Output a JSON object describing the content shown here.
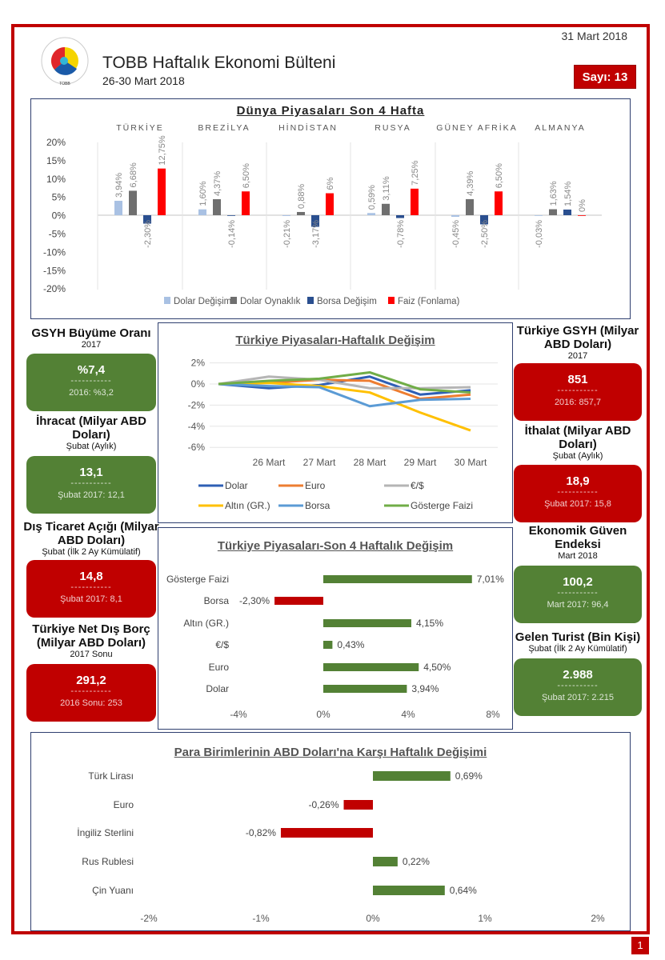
{
  "header": {
    "date": "31 Mart 2018",
    "title": "TOBB Haftalık Ekonomi Bülteni",
    "subtitle": "26-30 Mart 2018",
    "issue": "Sayı: 13",
    "logo_text": "TÜRKİYE ODALAR VE BORSALAR BİRLİĞİ TOBB"
  },
  "page_number": "1",
  "kpis_left": [
    {
      "title": "GSYH Büyüme Oranı",
      "period": "2017",
      "value": "%7,4",
      "divider": "-----------",
      "previous": "2016: %3,2",
      "color": "green"
    },
    {
      "title": "İhracat (Milyar ABD Doları)",
      "period": "Şubat (Aylık)",
      "value": "13,1",
      "divider": "-----------",
      "previous": "Şubat 2017: 12,1",
      "color": "green"
    },
    {
      "title": "Dış Ticaret Açığı (Milyar ABD Doları)",
      "period": "Şubat (İlk 2 Ay Kümülatif)",
      "value": "14,8",
      "divider": "-----------",
      "previous": "Şubat 2017: 8,1",
      "color": "red"
    },
    {
      "title": "Türkiye Net Dış Borç (Milyar ABD Doları)",
      "period": "2017 Sonu",
      "value": "291,2",
      "divider": "-----------",
      "previous": "2016 Sonu: 253",
      "color": "red"
    }
  ],
  "kpis_right": [
    {
      "title": "Türkiye GSYH (Milyar ABD Doları)",
      "period": "2017",
      "value": "851",
      "divider": "-----------",
      "previous": "2016: 857,7",
      "color": "red"
    },
    {
      "title": "İthalat (Milyar ABD Doları)",
      "period": "Şubat (Aylık)",
      "value": "18,9",
      "divider": "-----------",
      "previous": "Şubat 2017: 15,8",
      "color": "red"
    },
    {
      "title": "Ekonomik Güven Endeksi",
      "period": "Mart 2018",
      "value": "100,2",
      "divider": "-----------",
      "previous": "Mart 2017: 96,4",
      "color": "green"
    },
    {
      "title": "Gelen Turist (Bin Kişi)",
      "period": "Şubat (İlk 2 Ay Kümülatif)",
      "value": "2.988",
      "divider": "-----------",
      "previous": "Şubat 2017: 2.215",
      "color": "green"
    }
  ],
  "chart_data": [
    {
      "type": "bar",
      "title": "Dünya Piyasaları Son 4 Hafta",
      "categories": [
        "TÜRKİYE",
        "BREZİLYA",
        "HİNDİSTAN",
        "RUSYA",
        "GÜNEY AFRİKA",
        "ALMANYA"
      ],
      "ylim": [
        -20,
        20
      ],
      "yticks": [
        "20%",
        "15%",
        "10%",
        "5%",
        "0%",
        "-5%",
        "-10%",
        "-15%",
        "-20%"
      ],
      "legend": "bottom",
      "series": [
        {
          "name": "Dolar Değişimi",
          "color": "#a9c1e3",
          "values": [
            3.94,
            1.6,
            -0.21,
            0.59,
            -0.45,
            -0.03
          ],
          "labels": [
            "3,94%",
            "1,60%",
            "-0,21%",
            "0,59%",
            "-0,45%",
            "-0,03%"
          ]
        },
        {
          "name": "Dolar Oynaklık",
          "color": "#6f6f6f",
          "values": [
            6.68,
            4.37,
            0.88,
            3.11,
            4.39,
            1.63
          ],
          "labels": [
            "6,68%",
            "4,37%",
            "0,88%",
            "3,11%",
            "4,39%",
            "1,63%"
          ]
        },
        {
          "name": "Borsa Değişim",
          "color": "#2a4f8f",
          "values": [
            -2.3,
            -0.14,
            -3.17,
            -0.78,
            -2.5,
            1.54
          ],
          "labels": [
            "-2,30%",
            "-0,14%",
            "-3,17%",
            "-0,78%",
            "-2,50%",
            "1,54%"
          ]
        },
        {
          "name": "Faiz (Fonlama)",
          "color": "#ff0000",
          "values": [
            12.75,
            6.5,
            6,
            7.25,
            6.5,
            0
          ],
          "labels": [
            "12,75%",
            "6,50%",
            "6%",
            "7,25%",
            "6,50%",
            "0%"
          ]
        }
      ]
    },
    {
      "type": "line",
      "title": "Türkiye Piyasaları-Haftalık Değişim",
      "categories": [
        "",
        "26 Mart",
        "27 Mart",
        "28 Mart",
        "29 Mart",
        "30 Mart"
      ],
      "ylim": [
        -6,
        2
      ],
      "yticks": [
        "2%",
        "0%",
        "-2%",
        "-4%",
        "-6%"
      ],
      "legend": "bottom",
      "series": [
        {
          "name": "Dolar",
          "color": "#2e5fb5",
          "values": [
            0,
            -0.4,
            -0.1,
            0.7,
            -1.0,
            -0.6
          ]
        },
        {
          "name": "Euro",
          "color": "#ed7d31",
          "values": [
            0,
            0.1,
            0.4,
            0.3,
            -1.4,
            -1.0
          ]
        },
        {
          "name": "€/$",
          "color": "#b5b5b5",
          "values": [
            0,
            0.7,
            0.4,
            -0.4,
            -0.4,
            -0.3
          ]
        },
        {
          "name": "Altın (GR.)",
          "color": "#ffc000",
          "values": [
            0,
            0.1,
            -0.2,
            -0.8,
            -2.7,
            -4.4
          ]
        },
        {
          "name": "Borsa",
          "color": "#5b9bd5",
          "values": [
            0,
            -0.2,
            -0.3,
            -2.1,
            -1.5,
            -1.4
          ]
        },
        {
          "name": "Gösterge Faizi",
          "color": "#70ad47",
          "values": [
            0,
            0.3,
            0.5,
            1.1,
            -0.5,
            -0.8
          ]
        }
      ]
    },
    {
      "type": "bar",
      "orientation": "horizontal",
      "title": "Türkiye Piyasaları-Son 4 Haftalık Değişim",
      "categories": [
        "Gösterge Faizi",
        "Borsa",
        "Altın (GR.)",
        "€/$",
        "Euro",
        "Dolar"
      ],
      "values": [
        7.01,
        -2.3,
        4.15,
        0.43,
        4.5,
        3.94
      ],
      "labels": [
        "7,01%",
        "-2,30%",
        "4,15%",
        "0,43%",
        "4,50%",
        "3,94%"
      ],
      "xlim": [
        -4,
        8
      ],
      "xticks": [
        "-4%",
        "0%",
        "4%",
        "8%"
      ],
      "positive_color": "#538135",
      "negative_color": "#c00000"
    },
    {
      "type": "bar",
      "orientation": "horizontal",
      "title": "Para Birimlerinin ABD Doları'na Karşı Haftalık Değişimi",
      "categories": [
        "Türk Lirası",
        "Euro",
        "İngiliz Sterlini",
        "Rus Rublesi",
        "Çin Yuanı"
      ],
      "values": [
        0.69,
        -0.26,
        -0.82,
        0.22,
        0.64
      ],
      "labels": [
        "0,69%",
        "-0,26%",
        "-0,82%",
        "0,22%",
        "0,64%"
      ],
      "xlim": [
        -2,
        2
      ],
      "xticks": [
        "-2%",
        "-1%",
        "0%",
        "1%",
        "2%"
      ],
      "positive_color": "#538135",
      "negative_color": "#c00000"
    }
  ]
}
